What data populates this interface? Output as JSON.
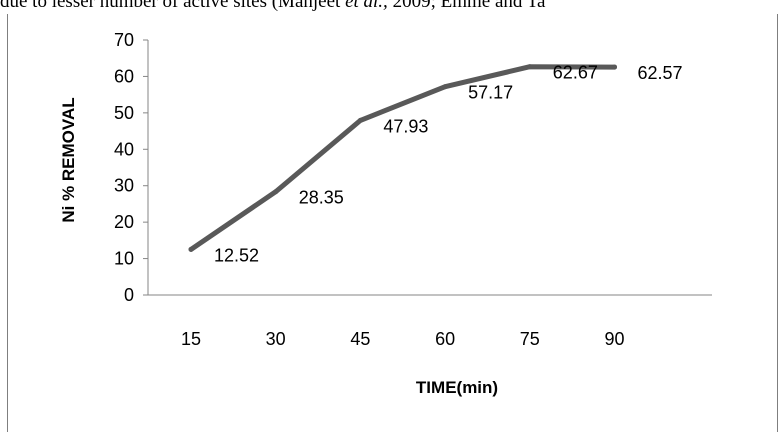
{
  "header_text": {
    "before": "due to lesser number of active sites (Manjeet ",
    "italic": "et al.,",
    "after": " 2009; Emme and Ta"
  },
  "chart_data": {
    "type": "line",
    "title": "",
    "xlabel": "TIME(min)",
    "ylabel": "Ni % REMOVAL",
    "categories": [
      "15",
      "30",
      "45",
      "60",
      "75",
      "90"
    ],
    "series": [
      {
        "values": [
          12.52,
          28.35,
          47.93,
          57.17,
          62.67,
          62.57
        ]
      }
    ],
    "data_labels": [
      "12.52",
      "28.35",
      "47.93",
      "57.17",
      "62.67",
      "62.57"
    ],
    "ylim": [
      0,
      70
    ],
    "yticks": [
      0,
      10,
      20,
      30,
      40,
      50,
      60,
      70
    ],
    "grid": false,
    "legend": "none",
    "line_color": "#595959"
  }
}
